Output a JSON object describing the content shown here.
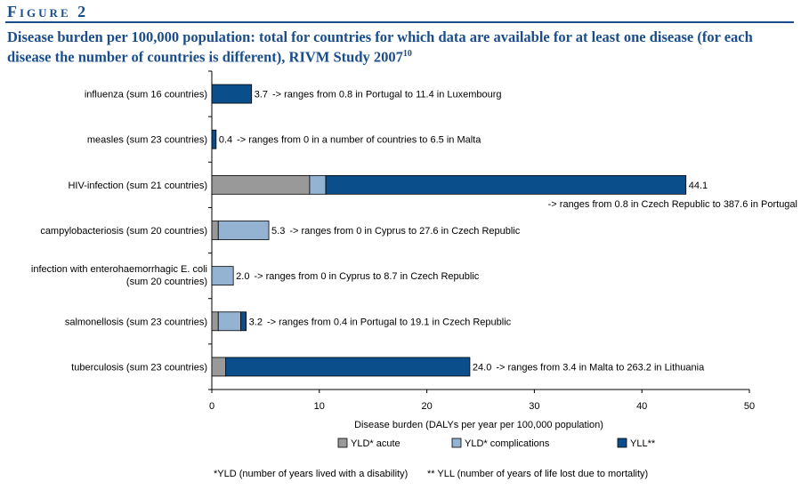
{
  "figure_label": "Figure 2",
  "title": "Disease burden per 100,000 population: total for countries for which data are available for at least one disease (for each disease the number of countries is different), RIVM Study 2007",
  "title_ref": "10",
  "footnotes": {
    "yld": "*YLD (number of years lived with a disability)",
    "yll": "** YLL (number of years of life lost due to mortality)"
  },
  "colors": {
    "accent": "#1a4d8c",
    "yld_acute": "#999999",
    "yld_complications": "#94b3d3",
    "yll": "#0a4f8c"
  },
  "chart_data": {
    "type": "bar",
    "orientation": "horizontal",
    "stacked": true,
    "xlabel": "Disease burden (DALYs per year per 100,000 population)",
    "xlim": [
      0,
      50
    ],
    "xticks": [
      0,
      10,
      20,
      30,
      40,
      50
    ],
    "legend_position": "bottom",
    "categories": [
      [
        "influenza (sum 16 countries)"
      ],
      [
        "measles (sum 23 countries)"
      ],
      [
        "HIV-infection (sum 21 countries)"
      ],
      [
        "campylobacteriosis (sum 20 countries)"
      ],
      [
        "infection with enterohaemorrhagic E. coli",
        "(sum 20 countries)"
      ],
      [
        "salmonellosis (sum 23 countries)"
      ],
      [
        "tuberculosis (sum 23 countries)"
      ]
    ],
    "series": [
      {
        "name": "YLD* acute",
        "values": [
          0,
          0,
          9.1,
          0.6,
          0,
          0.6,
          1.3
        ]
      },
      {
        "name": "YLD* complications",
        "values": [
          0,
          0,
          1.5,
          4.7,
          2.0,
          2.1,
          0
        ]
      },
      {
        "name": "YLL**",
        "values": [
          3.7,
          0.4,
          33.5,
          0,
          0,
          0.5,
          22.7
        ]
      }
    ],
    "value_labels": [
      "3.7",
      "0.4",
      "44.1",
      "5.3",
      "2.0",
      "3.2",
      "24.0"
    ],
    "notes": [
      "-> ranges from 0.8 in Portugal to 11.4 in Luxembourg",
      "-> ranges from 0 in a number of countries to 6.5 in Malta",
      "-> ranges from 0.8 in Czech Republic to 387.6 in Portugal",
      "-> ranges from 0 in Cyprus to 27.6 in Czech Republic",
      "-> ranges from 0 in Cyprus to 8.7 in Czech Republic",
      "-> ranges from 0.4 in Portugal  to 19.1 in Czech Republic",
      "-> ranges from 3.4 in Malta to 263.2 in Lithuania"
    ],
    "totals": [
      3.7,
      0.4,
      44.1,
      5.3,
      2.0,
      3.2,
      24.0
    ]
  }
}
